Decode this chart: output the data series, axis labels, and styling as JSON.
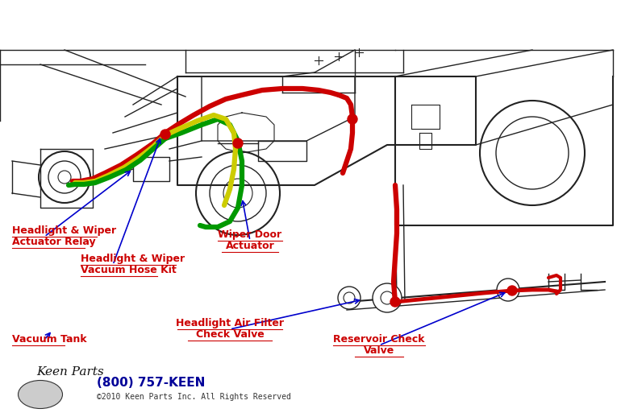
{
  "bg_color": "#ffffff",
  "line_color": "#222222",
  "red_color": "#cc0000",
  "green_color": "#009900",
  "yellow_color": "#cccc00",
  "blue_color": "#0000cc",
  "label_color": "#cc0000",
  "labels": {
    "headlight_wiper_relay": [
      "Headlight & Wiper",
      "Actuator Relay"
    ],
    "vacuum_hose_kit": [
      "Headlight & Wiper",
      "Vacuum Hose Kit"
    ],
    "wiper_door_actuator": [
      "Wiper Door",
      "Actuator"
    ],
    "vacuum_tank": [
      "Vacuum Tank"
    ],
    "air_filter_check_valve": [
      "Headlight Air Filter",
      "Check Valve"
    ],
    "reservoir_check_valve": [
      "Reservoir Check",
      "Valve"
    ]
  },
  "footer_phone": "(800) 757-KEEN",
  "footer_copy": "©2010 Keen Parts Inc. All Rights Reserved"
}
